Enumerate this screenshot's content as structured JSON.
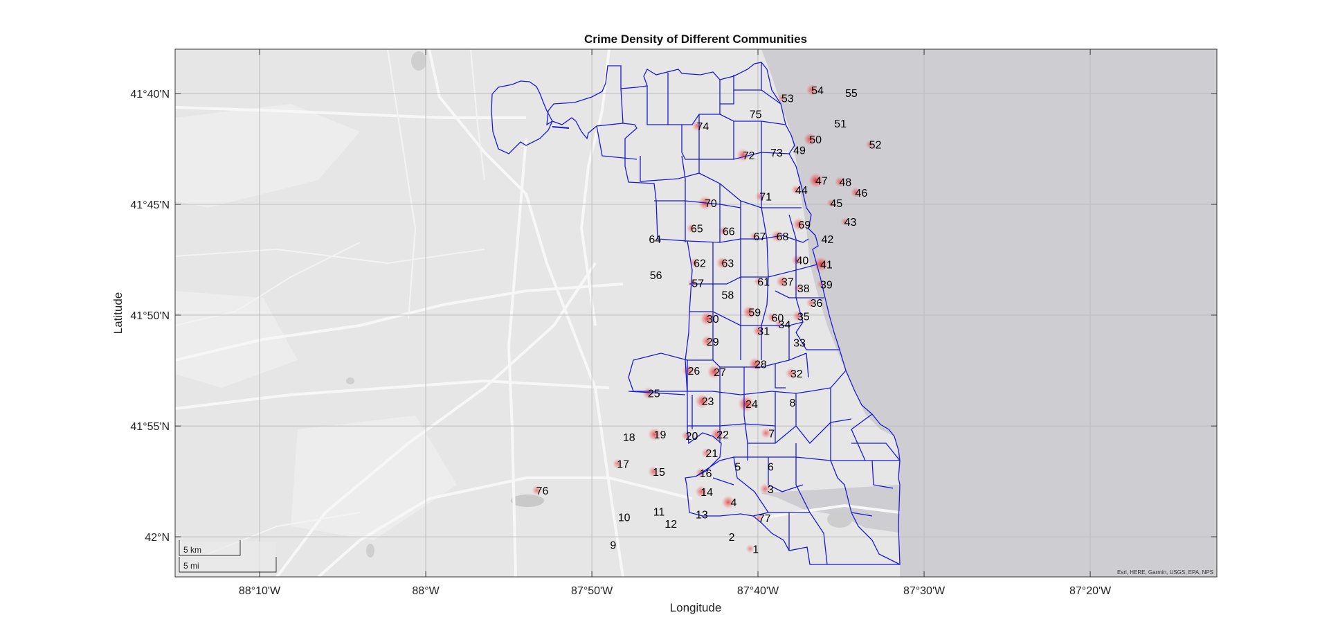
{
  "figure": {
    "title": "Crime Density of Different Communities",
    "xlabel": "Longitude",
    "ylabel": "Latitude",
    "attribution": "Esri, HERE, Garmin, USGS, EPA, NPS",
    "scale_bar": {
      "km_label": "5 km",
      "mi_label": "5 mi"
    }
  },
  "chart_data": {
    "type": "map",
    "title": "Crime Density of Different Communities",
    "xlabel": "Longitude",
    "ylabel": "Latitude",
    "xlim": [
      -88.25,
      -87.3
    ],
    "ylim": [
      41.64,
      42.03
    ],
    "grid": true,
    "basemap": "grayland",
    "colors": {
      "ocean": "#cdcdd2",
      "land": "#e6e6e6",
      "boundary": "#1a1ad6",
      "hotspot": "#e21a1a",
      "grid": "#bdbdbd"
    },
    "x_ticks": [
      {
        "value": -88.1667,
        "label": "88°10'W"
      },
      {
        "value": -88.0,
        "label": "88°W"
      },
      {
        "value": -87.8333,
        "label": "87°50'W"
      },
      {
        "value": -87.6667,
        "label": "87°40'W"
      },
      {
        "value": -87.5,
        "label": "87°30'W"
      },
      {
        "value": -87.3333,
        "label": "87°20'W"
      }
    ],
    "y_ticks": [
      {
        "value": 42.0,
        "label": "42°N"
      },
      {
        "value": 41.9167,
        "label": "41°55'N"
      },
      {
        "value": 41.8333,
        "label": "41°50'N"
      },
      {
        "value": 41.75,
        "label": "41°45'N"
      },
      {
        "value": 41.6667,
        "label": "41°40'N"
      }
    ],
    "communities": [
      {
        "id": "1",
        "lon": -87.669,
        "lat": 42.009,
        "density": 0.3
      },
      {
        "id": "2",
        "lon": -87.693,
        "lat": 42.0,
        "density": 0.2
      },
      {
        "id": "3",
        "lon": -87.654,
        "lat": 41.964,
        "density": 0.5
      },
      {
        "id": "4",
        "lon": -87.691,
        "lat": 41.974,
        "density": 0.7
      },
      {
        "id": "5",
        "lon": -87.687,
        "lat": 41.947,
        "density": 0.1
      },
      {
        "id": "6",
        "lon": -87.654,
        "lat": 41.947,
        "density": 0.2
      },
      {
        "id": "7",
        "lon": -87.653,
        "lat": 41.922,
        "density": 0.5
      },
      {
        "id": "8",
        "lon": -87.632,
        "lat": 41.899,
        "density": 0.2
      },
      {
        "id": "9",
        "lon": -87.812,
        "lat": 42.006,
        "density": 0.2
      },
      {
        "id": "10",
        "lon": -87.801,
        "lat": 41.985,
        "density": 0.1
      },
      {
        "id": "11",
        "lon": -87.766,
        "lat": 41.981,
        "density": 0.1
      },
      {
        "id": "12",
        "lon": -87.754,
        "lat": 41.99,
        "density": 0.1
      },
      {
        "id": "13",
        "lon": -87.723,
        "lat": 41.983,
        "density": 0.1
      },
      {
        "id": "14",
        "lon": -87.718,
        "lat": 41.966,
        "density": 0.6
      },
      {
        "id": "15",
        "lon": -87.766,
        "lat": 41.951,
        "density": 0.5
      },
      {
        "id": "16",
        "lon": -87.719,
        "lat": 41.952,
        "density": 0.4
      },
      {
        "id": "17",
        "lon": -87.802,
        "lat": 41.945,
        "density": 0.4
      },
      {
        "id": "18",
        "lon": -87.796,
        "lat": 41.925,
        "density": 0.1
      },
      {
        "id": "19",
        "lon": -87.765,
        "lat": 41.923,
        "density": 0.7
      },
      {
        "id": "20",
        "lon": -87.733,
        "lat": 41.924,
        "density": 0.4
      },
      {
        "id": "21",
        "lon": -87.713,
        "lat": 41.937,
        "density": 0.4
      },
      {
        "id": "22",
        "lon": -87.702,
        "lat": 41.923,
        "density": 0.7
      },
      {
        "id": "23",
        "lon": -87.717,
        "lat": 41.898,
        "density": 0.8
      },
      {
        "id": "24",
        "lon": -87.673,
        "lat": 41.9,
        "density": 1.0
      },
      {
        "id": "25",
        "lon": -87.771,
        "lat": 41.892,
        "density": 0.6
      },
      {
        "id": "26",
        "lon": -87.731,
        "lat": 41.875,
        "density": 0.6
      },
      {
        "id": "27",
        "lon": -87.705,
        "lat": 41.876,
        "density": 0.8
      },
      {
        "id": "28",
        "lon": -87.664,
        "lat": 41.87,
        "density": 0.7
      },
      {
        "id": "29",
        "lon": -87.712,
        "lat": 41.853,
        "density": 0.6
      },
      {
        "id": "30",
        "lon": -87.712,
        "lat": 41.836,
        "density": 0.8
      },
      {
        "id": "31",
        "lon": -87.661,
        "lat": 41.845,
        "density": 0.5
      },
      {
        "id": "32",
        "lon": -87.628,
        "lat": 41.877,
        "density": 0.5
      },
      {
        "id": "33",
        "lon": -87.625,
        "lat": 41.854,
        "density": 0.2
      },
      {
        "id": "34",
        "lon": -87.64,
        "lat": 41.84,
        "density": 0.3
      },
      {
        "id": "35",
        "lon": -87.621,
        "lat": 41.834,
        "density": 0.5
      },
      {
        "id": "36",
        "lon": -87.608,
        "lat": 41.824,
        "density": 0.4
      },
      {
        "id": "37",
        "lon": -87.637,
        "lat": 41.808,
        "density": 0.6
      },
      {
        "id": "38",
        "lon": -87.621,
        "lat": 41.813,
        "density": 0.3
      },
      {
        "id": "39",
        "lon": -87.598,
        "lat": 41.81,
        "density": 0.3
      },
      {
        "id": "40",
        "lon": -87.622,
        "lat": 41.792,
        "density": 0.5
      },
      {
        "id": "41",
        "lon": -87.598,
        "lat": 41.795,
        "density": 0.9
      },
      {
        "id": "42",
        "lon": -87.597,
        "lat": 41.776,
        "density": 0.2
      },
      {
        "id": "43",
        "lon": -87.574,
        "lat": 41.763,
        "density": 0.3
      },
      {
        "id": "44",
        "lon": -87.623,
        "lat": 41.739,
        "density": 0.4
      },
      {
        "id": "45",
        "lon": -87.588,
        "lat": 41.749,
        "density": 0.3
      },
      {
        "id": "46",
        "lon": -87.563,
        "lat": 41.741,
        "density": 0.5
      },
      {
        "id": "47",
        "lon": -87.603,
        "lat": 41.732,
        "density": 0.9
      },
      {
        "id": "48",
        "lon": -87.579,
        "lat": 41.733,
        "density": 0.5
      },
      {
        "id": "49",
        "lon": -87.625,
        "lat": 41.709,
        "density": 0.2
      },
      {
        "id": "50",
        "lon": -87.609,
        "lat": 41.701,
        "density": 0.7
      },
      {
        "id": "51",
        "lon": -87.584,
        "lat": 41.689,
        "density": 0.2
      },
      {
        "id": "52",
        "lon": -87.549,
        "lat": 41.705,
        "density": 0.3
      },
      {
        "id": "53",
        "lon": -87.637,
        "lat": 41.67,
        "density": 0.3
      },
      {
        "id": "54",
        "lon": -87.607,
        "lat": 41.664,
        "density": 0.6
      },
      {
        "id": "55",
        "lon": -87.573,
        "lat": 41.666,
        "density": 0.2
      },
      {
        "id": "56",
        "lon": -87.769,
        "lat": 41.803,
        "density": 0.1
      },
      {
        "id": "57",
        "lon": -87.727,
        "lat": 41.809,
        "density": 0.3
      },
      {
        "id": "58",
        "lon": -87.697,
        "lat": 41.818,
        "density": 0.2
      },
      {
        "id": "59",
        "lon": -87.67,
        "lat": 41.831,
        "density": 0.7
      },
      {
        "id": "60",
        "lon": -87.647,
        "lat": 41.835,
        "density": 0.4
      },
      {
        "id": "61",
        "lon": -87.661,
        "lat": 41.808,
        "density": 0.3
      },
      {
        "id": "62",
        "lon": -87.725,
        "lat": 41.794,
        "density": 0.4
      },
      {
        "id": "63",
        "lon": -87.697,
        "lat": 41.794,
        "density": 0.6
      },
      {
        "id": "64",
        "lon": -87.77,
        "lat": 41.776,
        "density": 0.1
      },
      {
        "id": "65",
        "lon": -87.728,
        "lat": 41.768,
        "density": 0.4
      },
      {
        "id": "66",
        "lon": -87.696,
        "lat": 41.77,
        "density": 0.4
      },
      {
        "id": "67",
        "lon": -87.665,
        "lat": 41.774,
        "density": 0.3
      },
      {
        "id": "68",
        "lon": -87.642,
        "lat": 41.774,
        "density": 0.6
      },
      {
        "id": "69",
        "lon": -87.62,
        "lat": 41.765,
        "density": 0.7
      },
      {
        "id": "70",
        "lon": -87.714,
        "lat": 41.749,
        "density": 0.8
      },
      {
        "id": "71",
        "lon": -87.659,
        "lat": 41.744,
        "density": 0.4
      },
      {
        "id": "72",
        "lon": -87.676,
        "lat": 41.713,
        "density": 0.7
      },
      {
        "id": "73",
        "lon": -87.648,
        "lat": 41.711,
        "density": 0.2
      },
      {
        "id": "74",
        "lon": -87.722,
        "lat": 41.691,
        "density": 0.5
      },
      {
        "id": "75",
        "lon": -87.669,
        "lat": 41.682,
        "density": 0.2
      },
      {
        "id": "76",
        "lon": -87.883,
        "lat": 41.965,
        "density": 0.4
      },
      {
        "id": "77",
        "lon": -87.66,
        "lat": 41.986,
        "density": 0.3
      }
    ]
  }
}
